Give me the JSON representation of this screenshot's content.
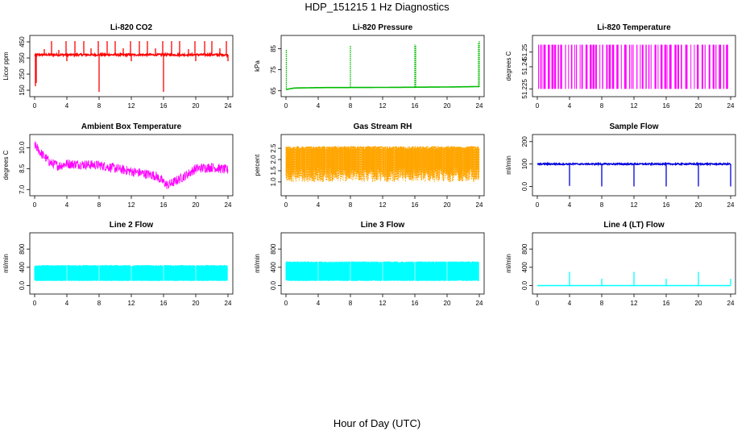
{
  "figure": {
    "title": "HDP_151215  1 Hz Diagnostics",
    "xlabel": "Hour of Day (UTC)"
  },
  "chart_data": [
    {
      "type": "line",
      "title": "Li-820 CO2",
      "ylabel": "Licor ppm",
      "color": "#ff0000",
      "xlim": [
        0,
        24
      ],
      "ylim": [
        140,
        460
      ],
      "xticks": [
        0,
        4,
        8,
        12,
        16,
        20,
        24
      ],
      "yticks": [
        150,
        250,
        350,
        450
      ],
      "baseline": 370,
      "noise": 6,
      "spikes_up": [
        [
          1.2,
          405
        ],
        [
          2.1,
          455
        ],
        [
          3.0,
          400
        ],
        [
          3.9,
          455
        ],
        [
          5.0,
          455
        ],
        [
          6.1,
          455
        ],
        [
          7.0,
          410
        ],
        [
          7.9,
          455
        ],
        [
          9.0,
          455
        ],
        [
          10.0,
          455
        ],
        [
          11.0,
          410
        ],
        [
          11.9,
          455
        ],
        [
          13.0,
          455
        ],
        [
          14.0,
          455
        ],
        [
          15.0,
          410
        ],
        [
          15.9,
          455
        ],
        [
          17.0,
          455
        ],
        [
          18.0,
          455
        ],
        [
          19.1,
          405
        ],
        [
          19.9,
          455
        ],
        [
          21.1,
          455
        ],
        [
          22.0,
          455
        ],
        [
          23.0,
          410
        ],
        [
          23.8,
          455
        ]
      ],
      "spikes_down": [
        [
          0.1,
          175
        ],
        [
          0.2,
          195
        ],
        [
          4.0,
          330
        ],
        [
          8.0,
          140
        ],
        [
          12.0,
          330
        ],
        [
          16.0,
          140
        ],
        [
          20.0,
          330
        ],
        [
          24.0,
          330
        ]
      ]
    },
    {
      "type": "line",
      "title": "Li-820 Pressure",
      "ylabel": "kPa",
      "color": "#00bb00",
      "xlim": [
        0,
        24
      ],
      "ylim": [
        64.5,
        89
      ],
      "xticks": [
        0,
        4,
        8,
        12,
        16,
        20,
        24
      ],
      "yticks": [
        65,
        75,
        85
      ],
      "baseline_points": [
        [
          0,
          65.6
        ],
        [
          1,
          66.3
        ],
        [
          4,
          66.5
        ],
        [
          12,
          66.6
        ],
        [
          20,
          66.8
        ],
        [
          24,
          67.0
        ]
      ],
      "spikes_up": [
        [
          0.05,
          84.5
        ],
        [
          8.0,
          86.5
        ],
        [
          16.0,
          87
        ],
        [
          16.1,
          86.8
        ],
        [
          23.9,
          88
        ],
        [
          24.0,
          88.5
        ]
      ]
    },
    {
      "type": "bar",
      "title": "Li-820 Temperature",
      "ylabel": "degrees C",
      "color": "#ff00ff",
      "xlim": [
        0,
        24
      ],
      "ylim": [
        51.223,
        51.258
      ],
      "xticks": [
        0,
        4,
        8,
        12,
        16,
        20,
        24
      ],
      "yticks": [
        51.225,
        51.24,
        51.25
      ],
      "low": 51.225,
      "high": 51.255
    },
    {
      "type": "line",
      "title": "Ambient Box Temperature",
      "ylabel": "degrees C",
      "color": "#ff00ff",
      "xlim": [
        0,
        24
      ],
      "ylim": [
        6.9,
        10.6
      ],
      "xticks": [
        0,
        4,
        8,
        12,
        16,
        20,
        24
      ],
      "yticks": [
        7.0,
        8.5,
        10.0
      ],
      "mean_points": [
        [
          0,
          10.2
        ],
        [
          0.8,
          9.6
        ],
        [
          2,
          8.9
        ],
        [
          3,
          8.7
        ],
        [
          4,
          8.85
        ],
        [
          8,
          8.75
        ],
        [
          12,
          8.3
        ],
        [
          15,
          8.0
        ],
        [
          16.5,
          7.3
        ],
        [
          17.5,
          7.6
        ],
        [
          19,
          8.1
        ],
        [
          20,
          8.5
        ],
        [
          22,
          8.6
        ],
        [
          24,
          8.4
        ]
      ],
      "noise": 0.35
    },
    {
      "type": "area",
      "title": "Gas Stream RH",
      "ylabel": "percent",
      "color": "#ffa500",
      "xlim": [
        0,
        24
      ],
      "ylim": [
        0.6,
        2.9
      ],
      "xticks": [
        0,
        4,
        8,
        12,
        16,
        20,
        24
      ],
      "yticks": [
        1.0,
        1.5,
        2.0,
        2.5
      ],
      "low": 1.0,
      "high": 2.6
    },
    {
      "type": "line",
      "title": "Sample Flow",
      "ylabel": "ml/min",
      "color": "#0000dd",
      "xlim": [
        0,
        24
      ],
      "ylim": [
        -20,
        210
      ],
      "xticks": [
        0,
        4,
        8,
        12,
        16,
        20,
        24
      ],
      "yticks": [
        0,
        100,
        200
      ],
      "baseline": 100,
      "noise": 3,
      "spikes_down": [
        [
          4.0,
          2
        ],
        [
          8.0,
          0
        ],
        [
          12.0,
          0
        ],
        [
          16.0,
          0
        ],
        [
          20.0,
          0
        ],
        [
          24.0,
          0
        ]
      ]
    },
    {
      "type": "area",
      "title": "Line 2 Flow",
      "ylabel": "ml/min",
      "color": "#00ffff",
      "xlim": [
        0,
        24
      ],
      "ylim": [
        -80,
        1050
      ],
      "xticks": [
        0,
        4,
        8,
        12,
        16,
        20,
        24
      ],
      "yticks": [
        0,
        400,
        800
      ],
      "low": 100,
      "high": 450,
      "gaps": [
        4.0,
        8.0,
        12.0,
        16.0,
        20.0,
        24.0
      ]
    },
    {
      "type": "area",
      "title": "Line 3 Flow",
      "ylabel": "ml/min",
      "color": "#00ffff",
      "xlim": [
        0,
        24
      ],
      "ylim": [
        -80,
        1050
      ],
      "xticks": [
        0,
        4,
        8,
        12,
        16,
        20,
        24
      ],
      "yticks": [
        0,
        400,
        800
      ],
      "low": 100,
      "high": 530,
      "gaps": [
        4.0,
        8.0,
        12.0,
        16.0,
        20.0,
        24.0
      ]
    },
    {
      "type": "line",
      "title": "Line 4 (LT) Flow",
      "ylabel": "ml/min",
      "color": "#00ffff",
      "xlim": [
        0,
        24
      ],
      "ylim": [
        -80,
        1050
      ],
      "xticks": [
        0,
        4,
        8,
        12,
        16,
        20,
        24
      ],
      "yticks": [
        0,
        400,
        800
      ],
      "baseline": 0,
      "spikes_up": [
        [
          4.0,
          300
        ],
        [
          8.0,
          150
        ],
        [
          12.0,
          300
        ],
        [
          16.0,
          150
        ],
        [
          20.0,
          300
        ],
        [
          24.0,
          150
        ]
      ]
    }
  ]
}
